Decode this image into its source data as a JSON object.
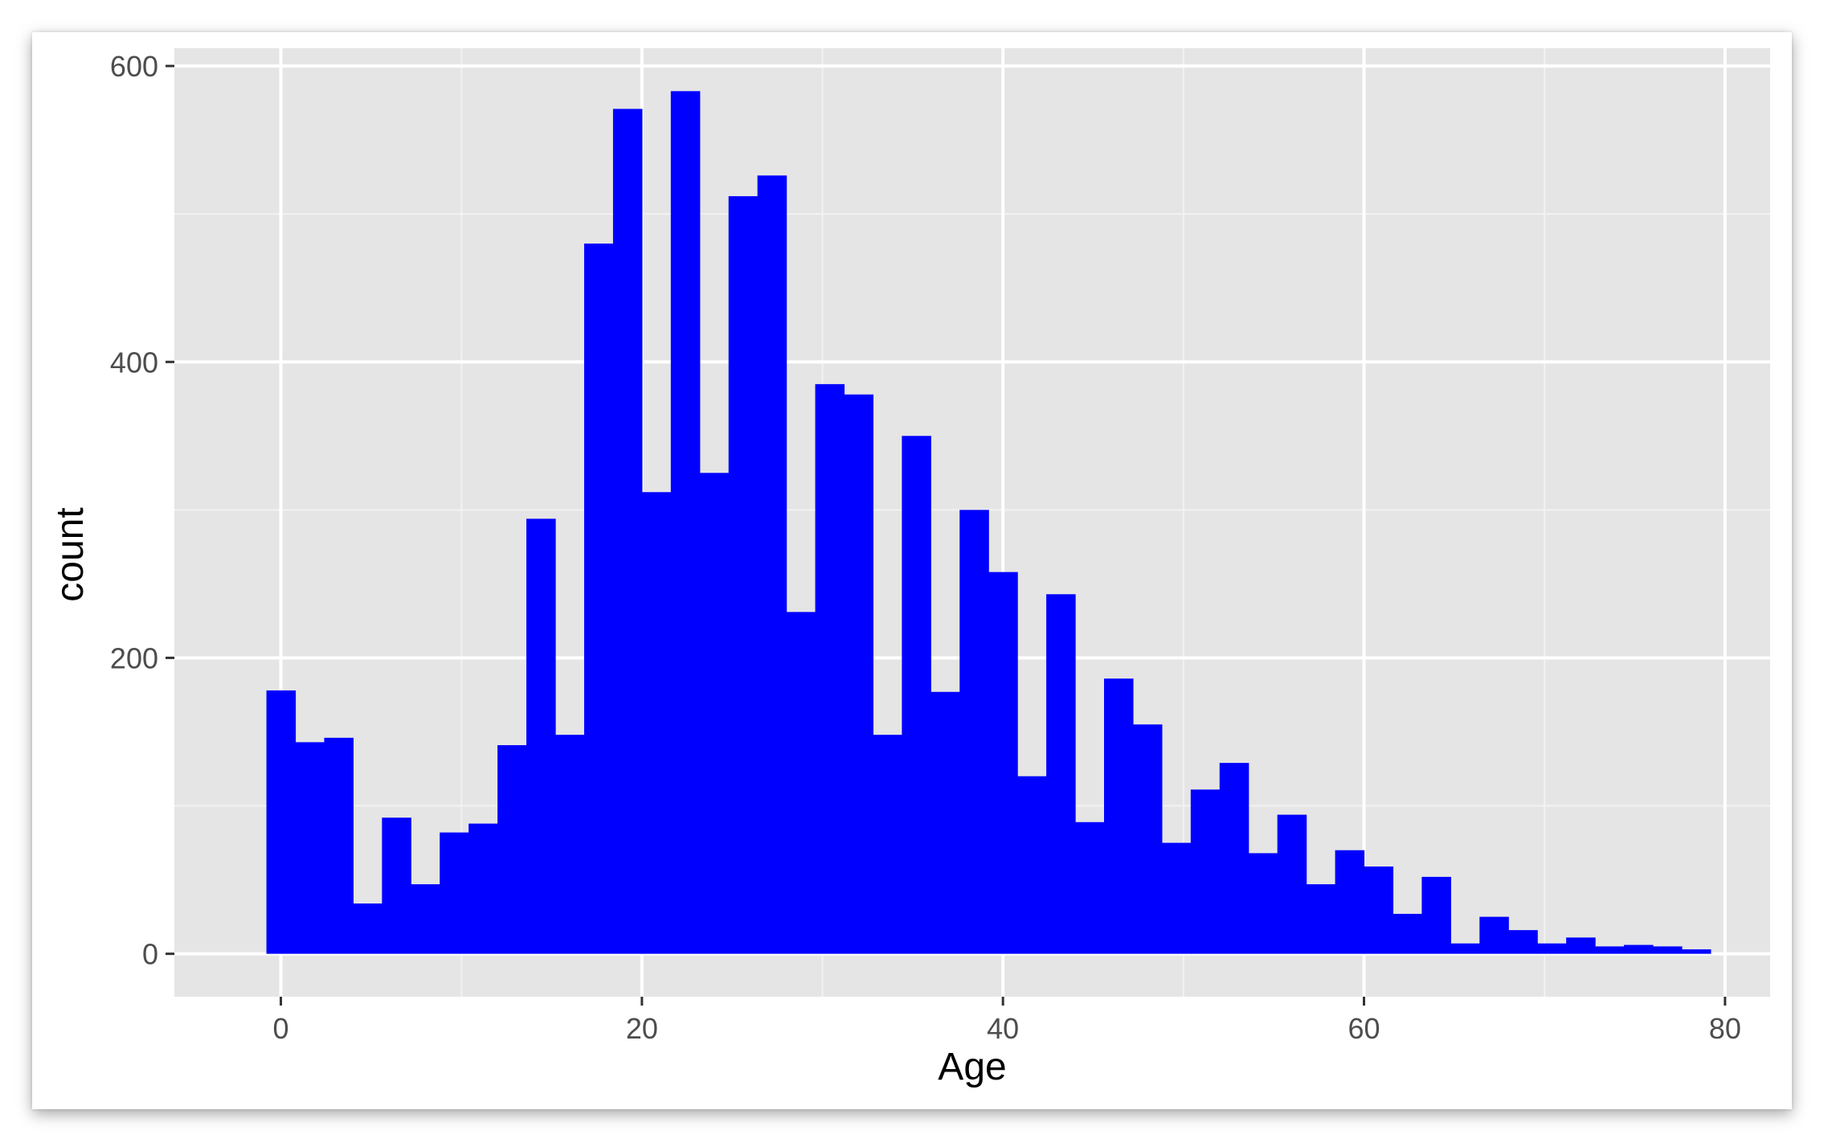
{
  "chart_data": {
    "type": "bar",
    "subtype": "histogram",
    "xlabel": "Age",
    "ylabel": "count",
    "xlim": [
      -5.9,
      82.5
    ],
    "ylim": [
      -29,
      612
    ],
    "x_ticks": [
      0,
      20,
      40,
      60,
      80
    ],
    "y_ticks": [
      0,
      200,
      400,
      600
    ],
    "bin_width": 1.6,
    "bin_start": -0.8,
    "values": [
      178,
      143,
      146,
      34,
      92,
      47,
      82,
      88,
      141,
      294,
      148,
      480,
      571,
      312,
      583,
      325,
      512,
      526,
      231,
      385,
      378,
      148,
      350,
      177,
      300,
      258,
      120,
      243,
      89,
      186,
      155,
      75,
      111,
      129,
      68,
      94,
      47,
      70,
      59,
      27,
      52,
      7,
      25,
      16,
      7,
      11,
      5,
      6,
      5,
      3
    ],
    "bar_color": "#0000ff",
    "panel_background": "#e5e5e5",
    "grid": true,
    "legend": "none"
  }
}
